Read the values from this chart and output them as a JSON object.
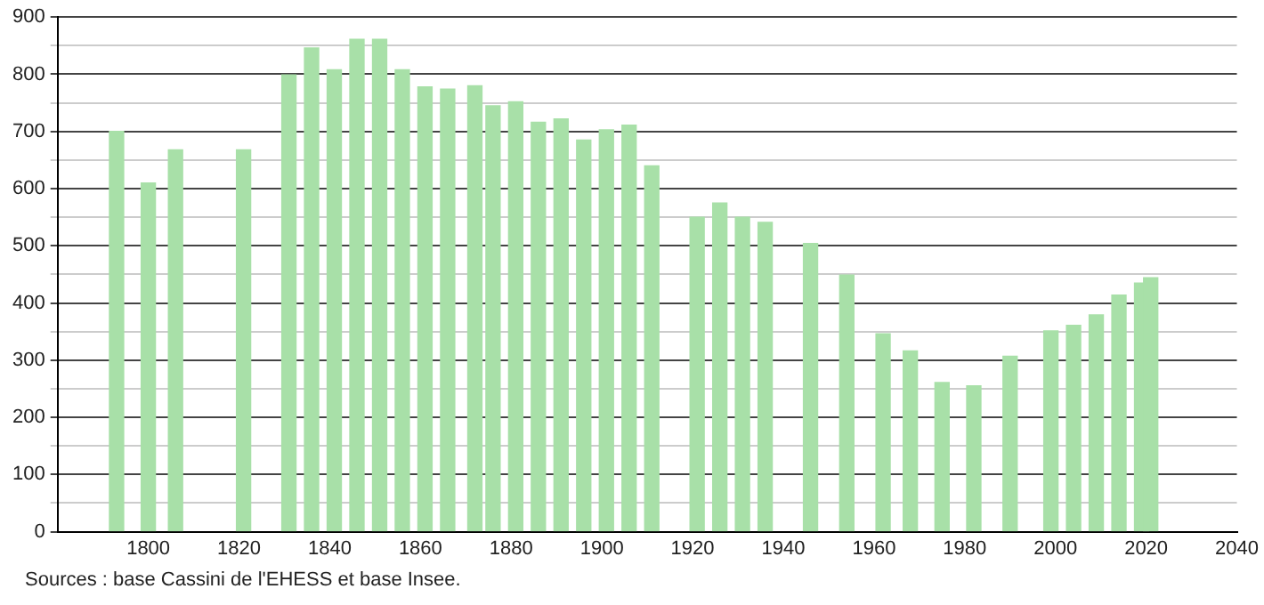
{
  "chart_data": {
    "type": "bar",
    "color": "#a8e0a8",
    "x": [
      1793,
      1800,
      1806,
      1821,
      1831,
      1836,
      1841,
      1846,
      1851,
      1856,
      1861,
      1866,
      1872,
      1876,
      1881,
      1886,
      1891,
      1896,
      1901,
      1906,
      1911,
      1921,
      1926,
      1931,
      1936,
      1946,
      1954,
      1962,
      1968,
      1975,
      1982,
      1990,
      1999,
      2004,
      2009,
      2014,
      2019,
      2021
    ],
    "values": [
      700,
      610,
      668,
      668,
      799,
      846,
      808,
      861,
      861,
      808,
      778,
      774,
      780,
      745,
      752,
      716,
      722,
      685,
      703,
      711,
      640,
      550,
      575,
      550,
      541,
      504,
      449,
      346,
      316,
      261,
      255,
      307,
      351,
      361,
      379,
      414,
      435,
      444
    ],
    "xlim": [
      1780,
      2040
    ],
    "xticks": [
      {
        "value": 1780,
        "label": null
      },
      1800,
      1820,
      1840,
      1860,
      1880,
      1900,
      1920,
      1940,
      1960,
      1980,
      2000,
      2020,
      2040
    ],
    "ylim": [
      0,
      900
    ],
    "yticks": [
      0,
      {
        "value": 50,
        "label": null
      },
      100,
      {
        "value": 150,
        "label": null
      },
      200,
      {
        "value": 250,
        "label": null
      },
      300,
      {
        "value": 350,
        "label": null
      },
      400,
      {
        "value": 450,
        "label": null
      },
      500,
      {
        "value": 550,
        "label": null
      },
      600,
      {
        "value": 650,
        "label": null
      },
      700,
      {
        "value": 750,
        "label": null
      },
      800,
      {
        "value": 850,
        "label": null
      },
      900
    ],
    "grid": "y",
    "annotations": [
      "Sources : base Cassini de l'EHESS et base Insee."
    ]
  }
}
